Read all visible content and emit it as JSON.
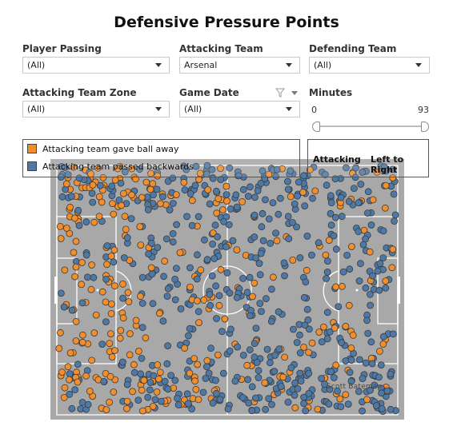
{
  "title": "Defensive Pressure Points",
  "filters": {
    "player_passing": {
      "label": "Player Passing",
      "value": "(All)"
    },
    "attacking_team": {
      "label": "Attacking Team",
      "value": "Arsenal"
    },
    "defending_team": {
      "label": "Defending Team",
      "value": "(All)"
    },
    "attacking_team_zone": {
      "label": "Attacking Team Zone",
      "value": "(All)"
    },
    "game_date": {
      "label": "Game Date",
      "value": "(All)"
    },
    "minutes": {
      "label": "Minutes",
      "min": "0",
      "max": "93"
    }
  },
  "legend": [
    {
      "label": "Attacking team gave ball away",
      "color": "#f28e2b"
    },
    {
      "label": "Attacking team passed backwards",
      "color": "#4e79a7"
    }
  ],
  "direction": {
    "left": "Attacking",
    "right": "Left to Right"
  },
  "watermark": "Scott Bateman",
  "icons": {
    "filter": "funnel-icon",
    "menu": "chevron-down-icon"
  },
  "colors": {
    "pitch": "#a8a8a8",
    "lines": "#ffffff",
    "gave_away": "#f28e2b",
    "backwards": "#4e79a7"
  }
}
